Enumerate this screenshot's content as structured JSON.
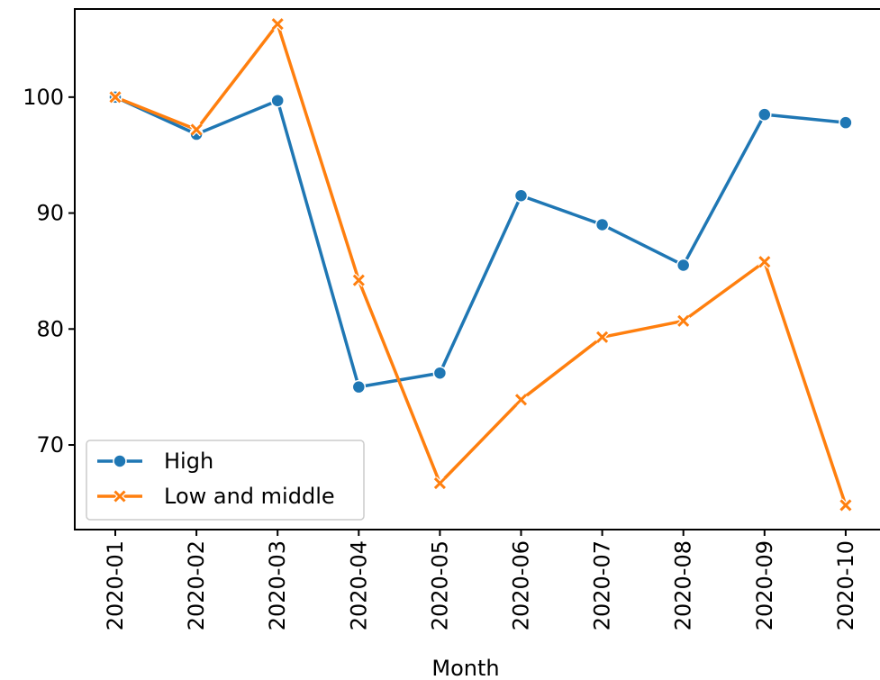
{
  "chart_data": {
    "type": "line",
    "title": "",
    "xlabel": "Month",
    "ylabel": "",
    "categories": [
      "2020-01",
      "2020-02",
      "2020-03",
      "2020-04",
      "2020-05",
      "2020-06",
      "2020-07",
      "2020-08",
      "2020-09",
      "2020-10"
    ],
    "y_ticks": [
      70,
      80,
      90,
      100
    ],
    "ylim": [
      62.7,
      107.6
    ],
    "grid": false,
    "legend_position": "lower-left",
    "series": [
      {
        "name": "High",
        "color": "#1f77b4",
        "marker": "circle",
        "values": [
          100.0,
          96.8,
          99.7,
          75.0,
          76.2,
          91.5,
          89.0,
          85.5,
          98.5,
          97.8
        ]
      },
      {
        "name": "Low and middle",
        "color": "#ff7f0e",
        "marker": "x",
        "values": [
          100.0,
          97.2,
          106.3,
          84.2,
          66.7,
          73.9,
          79.3,
          80.7,
          85.8,
          64.8
        ]
      }
    ]
  }
}
